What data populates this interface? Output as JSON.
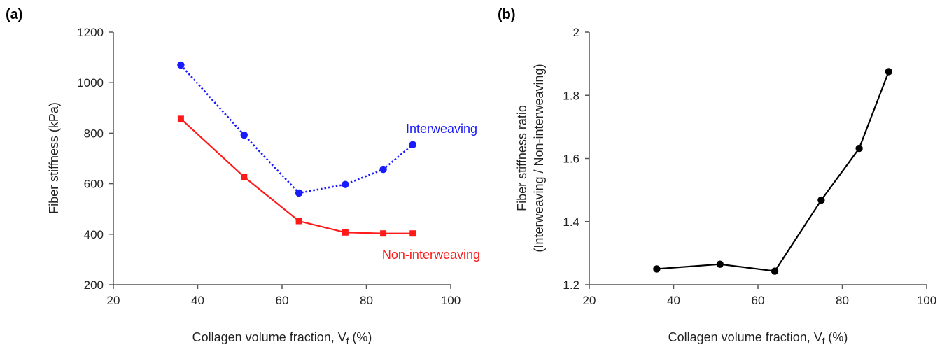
{
  "chart_data": [
    {
      "panel": "(a)",
      "type": "line",
      "xlabel": "Collagen volume fraction, V",
      "xlabel_sub": "f",
      "xlabel_unit": " (%)",
      "ylabel": "Fiber stiffness (kPa)",
      "xlim": [
        20,
        100
      ],
      "ylim": [
        200,
        1200
      ],
      "xticks": [
        20,
        40,
        60,
        80,
        100
      ],
      "yticks": [
        200,
        400,
        600,
        800,
        1000,
        1200
      ],
      "grid": false,
      "series": [
        {
          "name": "Interweaving",
          "color": "#1a1aff",
          "style": "dotted",
          "marker": "circle",
          "x": [
            36,
            51,
            64,
            75,
            84,
            91
          ],
          "y": [
            1070,
            793,
            563,
            597,
            657,
            755
          ]
        },
        {
          "name": "Non-interweaving",
          "color": "#ff1a1a",
          "style": "solid",
          "marker": "square",
          "x": [
            36,
            51,
            64,
            75,
            84,
            91
          ],
          "y": [
            857,
            627,
            452,
            407,
            403,
            403
          ]
        }
      ]
    },
    {
      "panel": "(b)",
      "type": "line",
      "xlabel": "Collagen volume fraction, V",
      "xlabel_sub": "f",
      "xlabel_unit": " (%)",
      "ylabel": "Fiber stiffness ratio",
      "ylabel2": "(Interweaving / Non-interweaving)",
      "xlim": [
        20,
        100
      ],
      "ylim": [
        1.2,
        2
      ],
      "xticks": [
        20,
        40,
        60,
        80,
        100
      ],
      "yticks": [
        "1.2",
        "1.4",
        "1.6",
        "1.8",
        "2"
      ],
      "grid": false,
      "series": [
        {
          "color": "#000000",
          "style": "solid",
          "marker": "circle",
          "x": [
            36,
            51,
            64,
            75,
            84,
            91
          ],
          "y": [
            1.25,
            1.265,
            1.243,
            1.468,
            1.632,
            1.875
          ]
        }
      ]
    }
  ]
}
